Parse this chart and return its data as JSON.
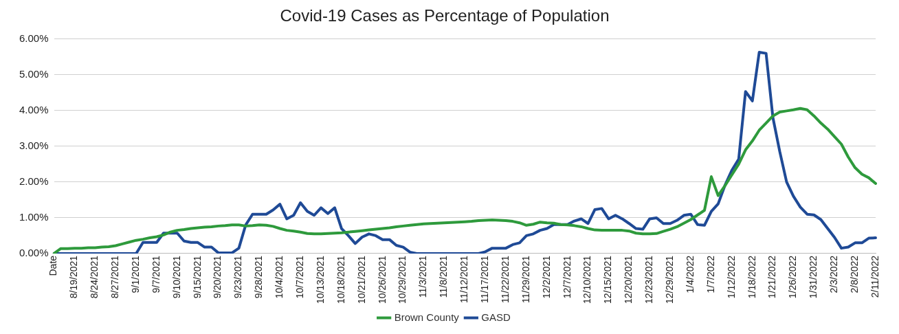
{
  "chart_data": {
    "type": "line",
    "title": "Covid-19 Cases as Percentage of Population",
    "categories": [
      "Date",
      null,
      null,
      "8/19/2021",
      null,
      null,
      "8/24/2021",
      null,
      null,
      "8/27/2021",
      null,
      null,
      "9/1/2021",
      null,
      null,
      "9/7/2021",
      null,
      null,
      "9/10/2021",
      null,
      null,
      "9/15/2021",
      null,
      null,
      "9/20/2021",
      null,
      null,
      "9/23/2021",
      null,
      null,
      "9/28/2021",
      null,
      null,
      "10/4/2021",
      null,
      null,
      "10/7/2021",
      null,
      null,
      "10/13/2021",
      null,
      null,
      "10/18/2021",
      null,
      null,
      "10/21/2021",
      null,
      null,
      "10/26/2021",
      null,
      null,
      "10/29/2021",
      null,
      null,
      "11/3/2021",
      null,
      null,
      "11/8/2021",
      null,
      null,
      "11/12/2021",
      null,
      null,
      "11/17/2021",
      null,
      null,
      "11/22/2021",
      null,
      null,
      "11/29/2021",
      null,
      null,
      "12/2/2021",
      null,
      null,
      "12/7/2021",
      null,
      null,
      "12/10/2021",
      null,
      null,
      "12/15/2021",
      null,
      null,
      "12/20/2021",
      null,
      null,
      "12/23/2021",
      null,
      null,
      "12/29/2021",
      null,
      null,
      "1/4/2022",
      null,
      null,
      "1/7/2022",
      null,
      null,
      "1/12/2022",
      null,
      null,
      "1/18/2022",
      null,
      null,
      "1/21/2022",
      null,
      null,
      "1/26/2022",
      null,
      null,
      "1/31/2022",
      null,
      null,
      "2/3/2022",
      null,
      null,
      "2/8/2022",
      null,
      null,
      "2/11/2022"
    ],
    "series": [
      {
        "name": "Brown County",
        "color": "#2e9a3c",
        "values": [
          0,
          0.14,
          0.14,
          0.15,
          0.15,
          0.16,
          0.16,
          0.18,
          0.19,
          0.22,
          0.27,
          0.32,
          0.37,
          0.4,
          0.44,
          0.47,
          0.52,
          0.6,
          0.65,
          0.67,
          0.7,
          0.72,
          0.74,
          0.75,
          0.77,
          0.78,
          0.8,
          0.8,
          0.77,
          0.78,
          0.8,
          0.79,
          0.76,
          0.7,
          0.65,
          0.63,
          0.6,
          0.56,
          0.55,
          0.55,
          0.56,
          0.57,
          0.58,
          0.6,
          0.62,
          0.64,
          0.66,
          0.68,
          0.7,
          0.72,
          0.75,
          0.77,
          0.79,
          0.81,
          0.83,
          0.84,
          0.85,
          0.86,
          0.87,
          0.88,
          0.89,
          0.9,
          0.92,
          0.93,
          0.94,
          0.93,
          0.92,
          0.9,
          0.86,
          0.79,
          0.82,
          0.88,
          0.86,
          0.85,
          0.81,
          0.8,
          0.78,
          0.75,
          0.7,
          0.66,
          0.65,
          0.65,
          0.65,
          0.65,
          0.63,
          0.57,
          0.55,
          0.55,
          0.56,
          0.62,
          0.68,
          0.75,
          0.85,
          0.95,
          1.08,
          1.21,
          2.15,
          1.62,
          1.9,
          2.2,
          2.5,
          2.9,
          3.15,
          3.45,
          3.65,
          3.85,
          3.96,
          3.99,
          4.02,
          4.06,
          4.02,
          3.85,
          3.65,
          3.48,
          3.27,
          3.06,
          2.7,
          2.4,
          2.22,
          2.12,
          1.96
        ]
      },
      {
        "name": "GASD",
        "color": "#1f4a96",
        "values": [
          0,
          0,
          0,
          0,
          0,
          0,
          0,
          0,
          0,
          0,
          0,
          0,
          0,
          0.31,
          0.31,
          0.31,
          0.57,
          0.57,
          0.57,
          0.35,
          0.31,
          0.31,
          0.18,
          0.18,
          0.02,
          0.02,
          0.02,
          0.15,
          0.8,
          1.1,
          1.1,
          1.1,
          1.22,
          1.38,
          0.97,
          1.07,
          1.42,
          1.18,
          1.07,
          1.28,
          1.12,
          1.28,
          0.7,
          0.5,
          0.28,
          0.46,
          0.55,
          0.5,
          0.39,
          0.39,
          0.23,
          0.18,
          0.04,
          0,
          0,
          0,
          0,
          0,
          0,
          0,
          0,
          0,
          0,
          0.05,
          0.15,
          0.15,
          0.15,
          0.25,
          0.3,
          0.5,
          0.55,
          0.65,
          0.7,
          0.81,
          0.81,
          0.81,
          0.91,
          0.97,
          0.84,
          1.23,
          1.26,
          0.97,
          1.07,
          0.97,
          0.84,
          0.7,
          0.68,
          0.97,
          1.0,
          0.84,
          0.84,
          0.93,
          1.07,
          1.1,
          0.81,
          0.79,
          1.18,
          1.39,
          1.91,
          2.33,
          2.64,
          4.53,
          4.27,
          5.63,
          5.6,
          3.8,
          2.85,
          2.0,
          1.6,
          1.3,
          1.1,
          1.08,
          0.95,
          0.7,
          0.45,
          0.15,
          0.18,
          0.3,
          0.3,
          0.43,
          0.44
        ]
      }
    ],
    "ylim": [
      0,
      6
    ],
    "yticks": [
      {
        "value": 0,
        "label": "0.00%"
      },
      {
        "value": 1,
        "label": "1.00%"
      },
      {
        "value": 2,
        "label": "2.00%"
      },
      {
        "value": 3,
        "label": "3.00%"
      },
      {
        "value": 4,
        "label": "4.00%"
      },
      {
        "value": 5,
        "label": "5.00%"
      },
      {
        "value": 6,
        "label": "6.00%"
      }
    ],
    "grid": "y",
    "legend": "bottom",
    "marker": "none",
    "line_style": "solid"
  }
}
